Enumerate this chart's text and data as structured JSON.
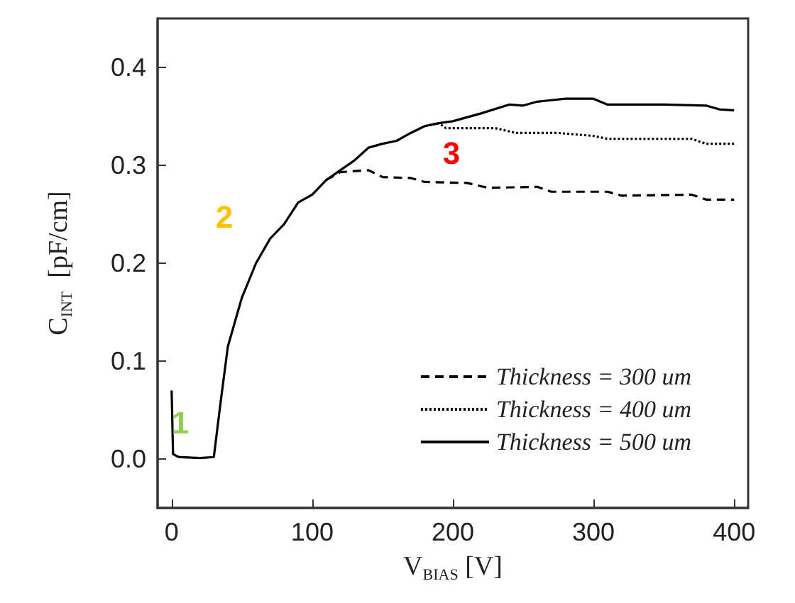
{
  "chart_data": {
    "type": "line",
    "xlabel": "V$_{BIAS}$ [V]",
    "ylabel": "C$_{INT}$  [pF/cm]",
    "xlim": [
      -10,
      410
    ],
    "xticks": [
      0,
      100,
      200,
      300,
      400
    ],
    "ylim": [
      -0.05,
      0.45
    ],
    "yticks": [
      {
        "value": 0,
        "label": "0.0"
      },
      {
        "value": 0.1,
        "label": "0.1"
      },
      {
        "value": 0.2,
        "label": "0.2"
      },
      {
        "value": 0.3,
        "label": "0.3"
      },
      {
        "value": 0.4,
        "label": "0.4"
      }
    ],
    "grid": false,
    "legend": "bottom right",
    "marker": "none",
    "annotations": [
      "1",
      "2",
      "3"
    ],
    "series": [
      {
        "name": "Thickness = 300 um",
        "color": "#000000",
        "line_style": "dashed",
        "x": [
          110,
          120,
          140,
          150,
          170,
          180,
          210,
          225,
          260,
          270,
          310,
          320,
          370,
          380,
          400
        ],
        "values": [
          0.285,
          0.293,
          0.295,
          0.288,
          0.287,
          0.283,
          0.282,
          0.277,
          0.278,
          0.273,
          0.273,
          0.269,
          0.27,
          0.265,
          0.265
        ]
      },
      {
        "name": "Thickness = 400 um",
        "color": "#000000",
        "line_style": "dotted",
        "x": [
          180,
          190,
          195,
          230,
          245,
          275,
          300,
          310,
          370,
          380,
          400
        ],
        "values": [
          0.34,
          0.343,
          0.338,
          0.338,
          0.333,
          0.333,
          0.33,
          0.327,
          0.327,
          0.322,
          0.322
        ]
      },
      {
        "name": "Thickness = 500 um",
        "color": "#000000",
        "line_style": "solid",
        "x": [
          0,
          1,
          5,
          20,
          30,
          35,
          40,
          50,
          60,
          70,
          80,
          90,
          100,
          110,
          120,
          130,
          140,
          150,
          160,
          170,
          180,
          190,
          200,
          220,
          240,
          250,
          260,
          280,
          300,
          310,
          350,
          380,
          390,
          400
        ],
        "values": [
          0.07,
          0.005,
          0.002,
          0.001,
          0.002,
          0.06,
          0.115,
          0.165,
          0.2,
          0.225,
          0.24,
          0.262,
          0.27,
          0.285,
          0.295,
          0.305,
          0.318,
          0.322,
          0.325,
          0.333,
          0.34,
          0.343,
          0.345,
          0.353,
          0.362,
          0.361,
          0.365,
          0.368,
          0.368,
          0.362,
          0.362,
          0.361,
          0.357,
          0.356
        ]
      }
    ]
  }
}
